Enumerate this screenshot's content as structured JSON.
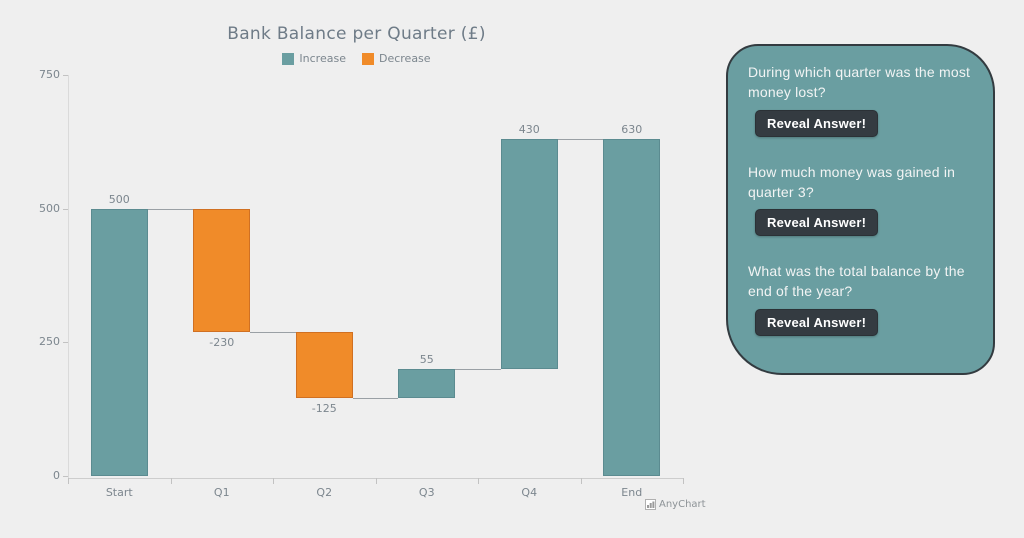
{
  "page": {
    "background": "#efefef"
  },
  "chart": {
    "title": "Bank Balance per Quarter (£)",
    "legend": {
      "items": [
        {
          "label": "Increase",
          "color": "#6A9EA1"
        },
        {
          "label": "Decrease",
          "color": "#F08B29"
        }
      ]
    },
    "credits_label": "AnyChart",
    "colors": {
      "increase": "#6A9EA1",
      "increase_stroke": "#5b8b90",
      "decrease": "#F08B29",
      "decrease_stroke": "#d07022",
      "connector": "#9aa0a5",
      "axis_line": "#cdcdcd",
      "tick": "#c2c2c2",
      "label": "#7c868e",
      "title": "#6e7b87"
    },
    "chart_data": {
      "type": "waterfall",
      "title": "Bank Balance per Quarter (£)",
      "categories": [
        "Start",
        "Q1",
        "Q2",
        "Q3",
        "Q4",
        "End"
      ],
      "values": [
        500,
        -230,
        -125,
        55,
        430,
        630
      ],
      "value_labels": [
        "500",
        "-230",
        "-125",
        "55",
        "430",
        "630"
      ],
      "bar_types": [
        "increase",
        "decrease",
        "decrease",
        "increase",
        "increase",
        "total"
      ],
      "cumulative": [
        500,
        270,
        145,
        200,
        630,
        630
      ],
      "legend": [
        "Increase",
        "Decrease"
      ],
      "legend_position": "top",
      "xlabel": "",
      "ylabel": "",
      "ylim": [
        0,
        750
      ],
      "yticks": [
        0,
        250,
        500,
        750
      ],
      "grid": false
    }
  },
  "panel": {
    "background": "#6A9EA1",
    "border_color": "#333B40",
    "button": {
      "background": "#343B41",
      "text_color": "#ffffff"
    },
    "questions": [
      {
        "text": "During which quarter was the most money lost?",
        "button_label": "Reveal Answer!"
      },
      {
        "text": "How much money was gained in quarter 3?",
        "button_label": "Reveal Answer!"
      },
      {
        "text": "What was the total balance by the end of the year?",
        "button_label": "Reveal Answer!"
      }
    ]
  }
}
